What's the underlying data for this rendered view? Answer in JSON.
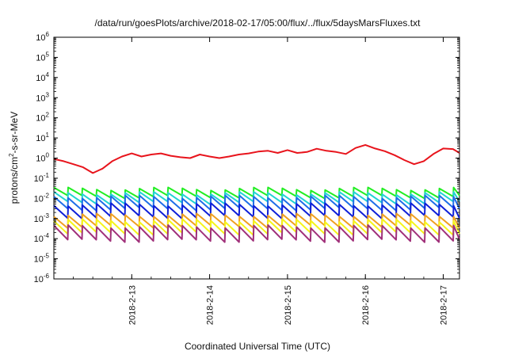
{
  "chart_data": {
    "type": "line",
    "title": "/data/run/goesPlots/archive/2018-02-17/05:00/flux/../flux/5daysMarsFluxes.txt",
    "xlabel": "Coordinated Universal Time (UTC)",
    "ylabel_prefix": "protons/cm",
    "ylabel_sup": "2",
    "ylabel_suffix": "-s-sr-MeV",
    "x_scale": "date",
    "xlim": [
      "2018-02-12 00:00",
      "2018-02-17 05:00"
    ],
    "y_scale": "log",
    "ylim": [
      1e-06,
      1000000.0
    ],
    "y_ticks": [
      {
        "base": "10",
        "exp": "-6"
      },
      {
        "base": "10",
        "exp": "-5"
      },
      {
        "base": "10",
        "exp": "-4"
      },
      {
        "base": "10",
        "exp": "-3"
      },
      {
        "base": "10",
        "exp": "-2"
      },
      {
        "base": "10",
        "exp": "-1"
      },
      {
        "base": "10",
        "exp": "0"
      },
      {
        "base": "10",
        "exp": "1"
      },
      {
        "base": "10",
        "exp": "2"
      },
      {
        "base": "10",
        "exp": "3"
      },
      {
        "base": "10",
        "exp": "4"
      },
      {
        "base": "10",
        "exp": "5"
      },
      {
        "base": "10",
        "exp": "6"
      }
    ],
    "x_ticks": [
      "2018-2-13",
      "2018-2-14",
      "2018-2-15",
      "2018-2-16",
      "2018-2-17"
    ],
    "grid": false,
    "legend": "none",
    "series": [
      {
        "color": "#e8141c",
        "points": [
          [
            "2018-02-12 00:00",
            0.9
          ],
          [
            "2018-02-12 03:00",
            0.7
          ],
          [
            "2018-02-12 06:00",
            0.5
          ],
          [
            "2018-02-12 09:00",
            0.35
          ],
          [
            "2018-02-12 12:00",
            0.18
          ],
          [
            "2018-02-12 15:00",
            0.3
          ],
          [
            "2018-02-12 18:00",
            0.7
          ],
          [
            "2018-02-12 21:00",
            1.2
          ],
          [
            "2018-02-13 00:00",
            1.7
          ],
          [
            "2018-02-13 03:00",
            1.2
          ],
          [
            "2018-02-13 06:00",
            1.5
          ],
          [
            "2018-02-13 09:00",
            1.7
          ],
          [
            "2018-02-13 12:00",
            1.3
          ],
          [
            "2018-02-13 15:00",
            1.1
          ],
          [
            "2018-02-13 18:00",
            1.0
          ],
          [
            "2018-02-13 21:00",
            1.5
          ],
          [
            "2018-02-14 00:00",
            1.2
          ],
          [
            "2018-02-14 03:00",
            1.0
          ],
          [
            "2018-02-14 06:00",
            1.2
          ],
          [
            "2018-02-14 09:00",
            1.5
          ],
          [
            "2018-02-14 12:00",
            1.7
          ],
          [
            "2018-02-14 15:00",
            2.1
          ],
          [
            "2018-02-14 18:00",
            2.3
          ],
          [
            "2018-02-14 21:00",
            1.8
          ],
          [
            "2018-02-15 00:00",
            2.5
          ],
          [
            "2018-02-15 03:00",
            1.8
          ],
          [
            "2018-02-15 06:00",
            2.0
          ],
          [
            "2018-02-15 09:00",
            2.9
          ],
          [
            "2018-02-15 12:00",
            2.3
          ],
          [
            "2018-02-15 15:00",
            2.0
          ],
          [
            "2018-02-15 18:00",
            1.6
          ],
          [
            "2018-02-15 21:00",
            3.2
          ],
          [
            "2018-02-16 00:00",
            4.5
          ],
          [
            "2018-02-16 03:00",
            3.0
          ],
          [
            "2018-02-16 06:00",
            2.2
          ],
          [
            "2018-02-16 09:00",
            1.4
          ],
          [
            "2018-02-16 12:00",
            0.8
          ],
          [
            "2018-02-16 15:00",
            0.5
          ],
          [
            "2018-02-16 18:00",
            0.7
          ],
          [
            "2018-02-16 21:00",
            1.6
          ],
          [
            "2018-02-17 00:00",
            3.0
          ],
          [
            "2018-02-17 03:00",
            2.8
          ],
          [
            "2018-02-17 05:00",
            1.8
          ]
        ]
      },
      {
        "color": "#22ee22",
        "sawtooth": {
          "peak": 0.03,
          "trough": 0.012,
          "period_hours": 4.4
        }
      },
      {
        "color": "#22d3d3",
        "sawtooth": {
          "peak": 0.018,
          "trough": 0.006,
          "period_hours": 4.4
        }
      },
      {
        "color": "#1e6ee8",
        "sawtooth": {
          "peak": 0.012,
          "trough": 0.003,
          "period_hours": 4.4
        }
      },
      {
        "color": "#0f1fd8",
        "sawtooth": {
          "peak": 0.005,
          "trough": 0.0012,
          "period_hours": 4.4
        }
      },
      {
        "color": "#f0a020",
        "sawtooth": {
          "peak": 0.0015,
          "trough": 0.0004,
          "period_hours": 4.4
        }
      },
      {
        "color": "#f5f51a",
        "sawtooth": {
          "peak": 0.0008,
          "trough": 0.00018,
          "period_hours": 4.4
        }
      },
      {
        "color": "#a0307a",
        "sawtooth": {
          "peak": 0.0004,
          "trough": 8e-05,
          "period_hours": 4.4
        }
      }
    ]
  }
}
